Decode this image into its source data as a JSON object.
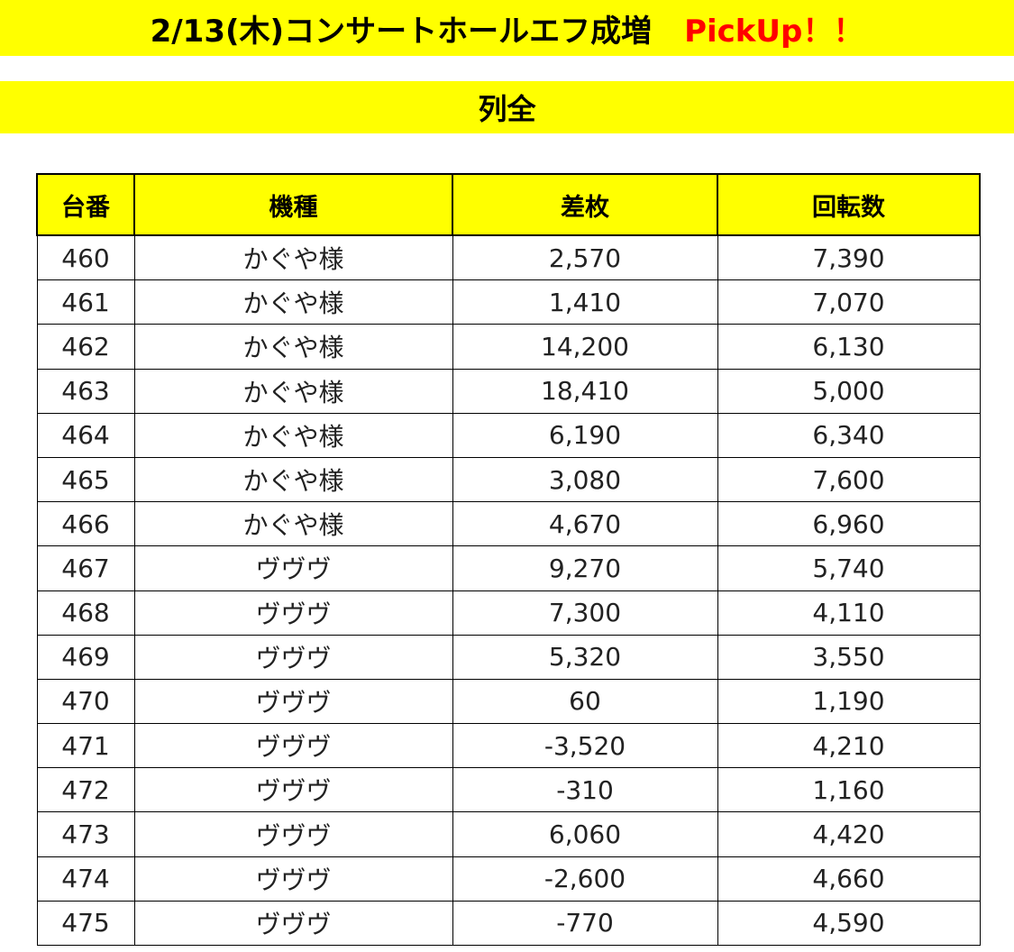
{
  "header": {
    "title": "2/13(木)コンサートホールエフ成増",
    "pickup": "PickUp！！",
    "subtitle": "列全",
    "accent_color": "#ffff00",
    "pickup_color": "#ff0000"
  },
  "table": {
    "columns": [
      "台番",
      "機種",
      "差枚",
      "回転数"
    ],
    "rows": [
      [
        "460",
        "かぐや様",
        "2,570",
        "7,390"
      ],
      [
        "461",
        "かぐや様",
        "1,410",
        "7,070"
      ],
      [
        "462",
        "かぐや様",
        "14,200",
        "6,130"
      ],
      [
        "463",
        "かぐや様",
        "18,410",
        "5,000"
      ],
      [
        "464",
        "かぐや様",
        "6,190",
        "6,340"
      ],
      [
        "465",
        "かぐや様",
        "3,080",
        "7,600"
      ],
      [
        "466",
        "かぐや様",
        "4,670",
        "6,960"
      ],
      [
        "467",
        "ヴヴヴ",
        "9,270",
        "5,740"
      ],
      [
        "468",
        "ヴヴヴ",
        "7,300",
        "4,110"
      ],
      [
        "469",
        "ヴヴヴ",
        "5,320",
        "3,550"
      ],
      [
        "470",
        "ヴヴヴ",
        "60",
        "1,190"
      ],
      [
        "471",
        "ヴヴヴ",
        "-3,520",
        "4,210"
      ],
      [
        "472",
        "ヴヴヴ",
        "-310",
        "1,160"
      ],
      [
        "473",
        "ヴヴヴ",
        "6,060",
        "4,420"
      ],
      [
        "474",
        "ヴヴヴ",
        "-2,600",
        "4,660"
      ],
      [
        "475",
        "ヴヴヴ",
        "-770",
        "4,590"
      ]
    ]
  }
}
